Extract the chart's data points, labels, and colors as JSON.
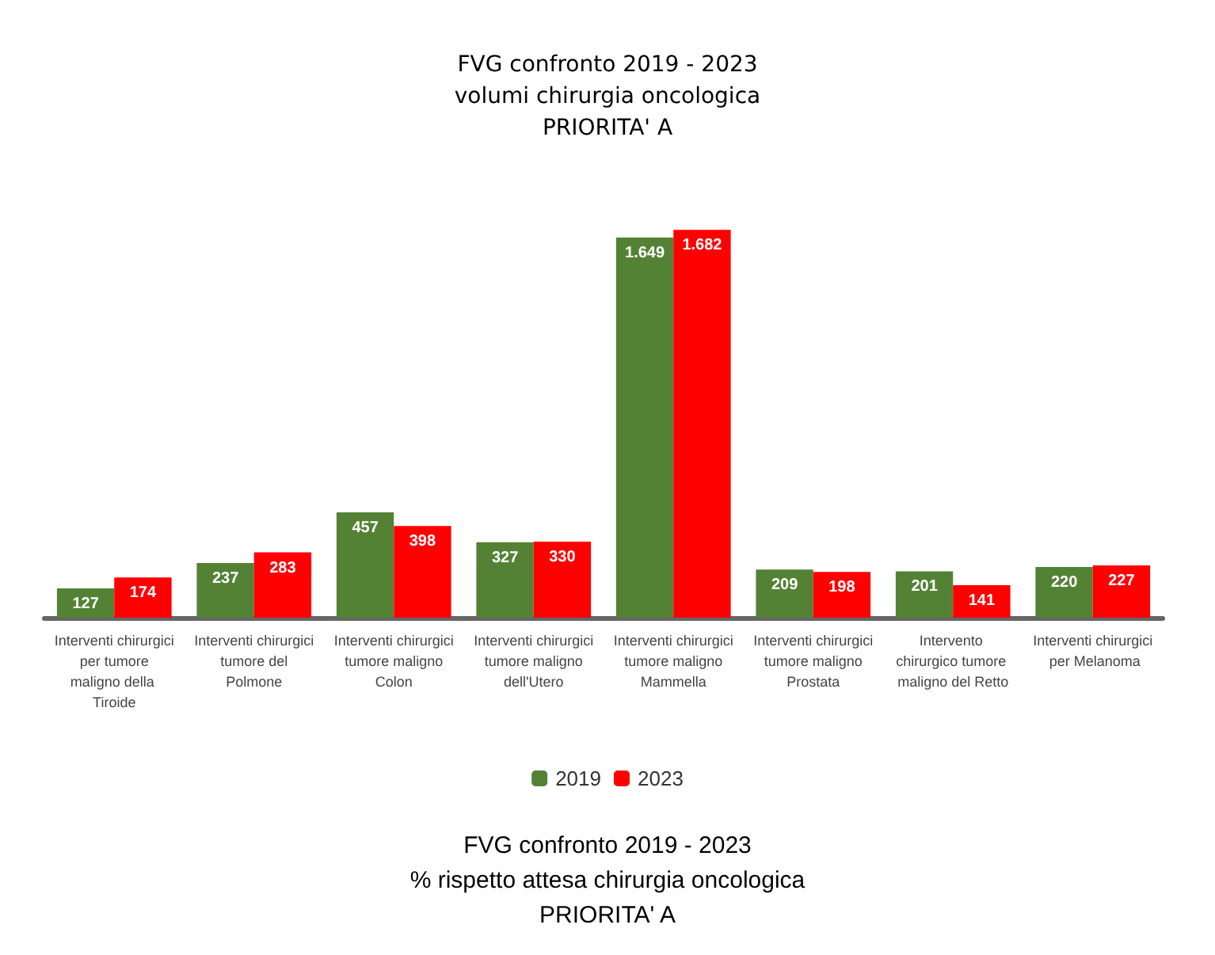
{
  "chart_data": {
    "type": "bar",
    "title": "FVG confronto 2019 - 2023\nvolumi chirurgia oncologica\nPRIORITA' A",
    "categories": [
      "Interventi chirurgici per tumore maligno della Tiroide",
      "Interventi chirurgici tumore del Polmone",
      "Interventi chirurgici tumore maligno Colon",
      "Interventi chirurgici tumore maligno dell'Utero",
      "Interventi chirurgici tumore maligno Mammella",
      "Interventi chirurgici tumore maligno Prostata",
      "Intervento chirurgico tumore maligno del Retto",
      "Interventi chirurgici per Melanoma"
    ],
    "series": [
      {
        "name": "2019",
        "color": "#548235",
        "values": [
          127,
          237,
          457,
          327,
          1649,
          209,
          201,
          220
        ],
        "value_labels": [
          "127",
          "237",
          "457",
          "327",
          "1.649",
          "209",
          "201",
          "220"
        ]
      },
      {
        "name": "2023",
        "color": "#ff0000",
        "values": [
          174,
          283,
          398,
          330,
          1682,
          198,
          141,
          227
        ],
        "value_labels": [
          "174",
          "283",
          "398",
          "330",
          "1.682",
          "198",
          "141",
          "227"
        ]
      }
    ],
    "tick_labels": "x",
    "grid": false,
    "legend": "bottom",
    "annotations": [
      "FVG confronto 2019 - 2023\n% rispetto attesa chirurgia oncologica\nPRIORITA' A"
    ]
  }
}
